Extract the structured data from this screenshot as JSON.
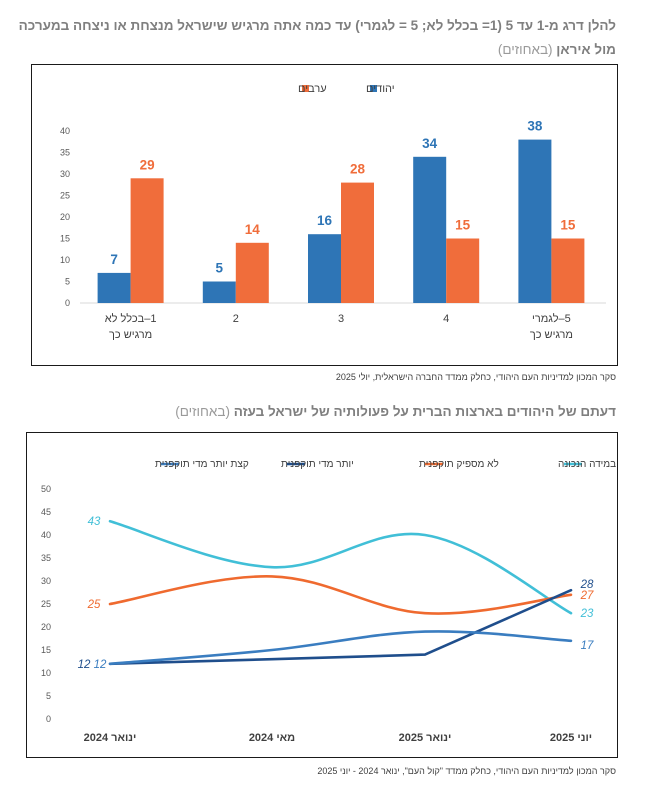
{
  "chart1": {
    "title_main": "להלן דרג מ-1 עד 5 (1= בכלל לא; 5 = לגמרי) עד כמה אתה מרגיש שישראל מנצחת או ניצחה במערכה מול איראן",
    "title_unit": "(באחוזים)",
    "source": "סקר המכון למדיניות העם היהודי, כחלק ממדד החברה הישראלית, יולי 2025"
  },
  "chart2": {
    "title_main": "דעתם של היהודים בארצות הברית על פעולותיה של ישראל בעזה",
    "title_unit": "(באחוזים)",
    "source": "סקר המכון למדיניות העם היהודי, כחלק ממדד \"קול העם\",  ינואר 2024  - יוני 2025"
  },
  "chart_data": [
    {
      "type": "bar",
      "categories": [
        "1–בכלל לא מרגיש כך",
        "2",
        "3",
        "4",
        "5–לגמרי מרגיש כך"
      ],
      "series": [
        {
          "name": "יהודים",
          "color": "#2e75b6",
          "values": [
            7,
            5,
            16,
            34,
            38
          ]
        },
        {
          "name": "ערבים",
          "color": "#f06d3b",
          "values": [
            29,
            14,
            28,
            15,
            15
          ]
        }
      ],
      "ylim": [
        0,
        40
      ],
      "yticks": [
        0,
        5,
        10,
        15,
        20,
        25,
        30,
        35,
        40
      ],
      "legend_position": "top-center",
      "grid": false
    },
    {
      "type": "line",
      "x": [
        "ינואר 2024",
        "מאי 2024",
        "ינואר 2025",
        "יוני 2025"
      ],
      "series": [
        {
          "name": "תוקפנית במידה הנכונה",
          "color": "#41bfd7",
          "values": [
            43,
            33,
            40,
            23
          ],
          "labels": [
            "43",
            null,
            null,
            "23"
          ]
        },
        {
          "name": "לא מספיק תוקפנית",
          "color": "#ef6a2f",
          "values": [
            25,
            31,
            23,
            27
          ],
          "labels": [
            "25",
            null,
            null,
            "27"
          ]
        },
        {
          "name": "יותר מדי תוקפנית",
          "color": "#1f4e8c",
          "values": [
            12,
            13,
            14,
            28
          ],
          "labels": [
            "12",
            null,
            null,
            "28"
          ]
        },
        {
          "name": "קצת יותר מדי תוקפנית",
          "color": "#3a7dc0",
          "values": [
            12,
            15,
            19,
            17
          ],
          "labels": [
            "12",
            null,
            null,
            "17"
          ]
        }
      ],
      "ylim": [
        0,
        50
      ],
      "yticks": [
        0,
        5,
        10,
        15,
        20,
        25,
        30,
        35,
        40,
        45,
        50
      ],
      "legend_position": "top",
      "grid": false
    }
  ]
}
